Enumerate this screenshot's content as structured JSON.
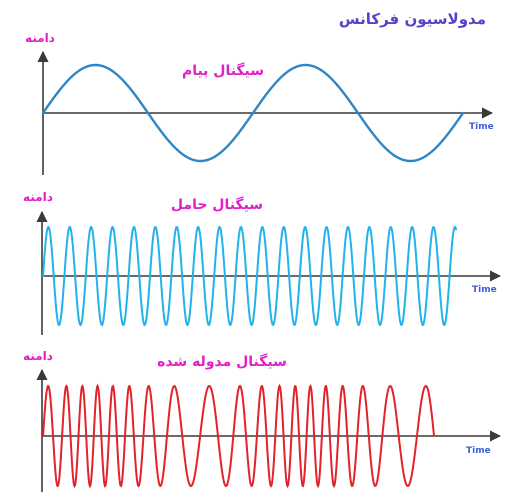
{
  "title": "مدولاسیون فرکانس",
  "colors": {
    "title": "#5b3fc9",
    "magenta": "#e11fc9",
    "axis": "#3a3a3a",
    "time_label": "#3b5fd6",
    "message": "#2f86c3",
    "carrier": "#22b3ec",
    "modulated": "#e3232b"
  },
  "panels": [
    {
      "key": "message",
      "y_axis_label": "دامنه",
      "x_axis_label": "Time",
      "signal_label": "سیگنال پیام"
    },
    {
      "key": "carrier",
      "y_axis_label": "دامنه",
      "x_axis_label": "Time",
      "signal_label": "سیگنال حامل"
    },
    {
      "key": "modulated",
      "y_axis_label": "دامنه",
      "x_axis_label": "Time",
      "signal_label": "سیگنال مدوله شده"
    }
  ]
}
